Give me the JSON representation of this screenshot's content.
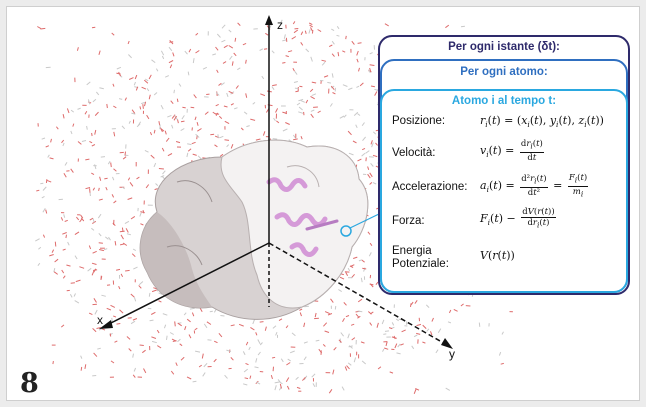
{
  "figure": {
    "number": "8"
  },
  "axes": {
    "x": "x",
    "y": "y",
    "z": "z"
  },
  "panel": {
    "outer_title": "Per ogni istante (δt):",
    "middle_title": "Per ogni atomo:",
    "inner_title": "Atomo i al tempo t:",
    "rows": [
      {
        "label": "Posizione:"
      },
      {
        "label": "Velocità:"
      },
      {
        "label": "Accelerazione:"
      },
      {
        "label": "Forza:"
      },
      {
        "label": "Energia Potenziale:"
      }
    ]
  },
  "colors": {
    "outer_box": "#2e2a6b",
    "middle_box": "#2f6fc0",
    "inner_box": "#2aa8e0",
    "water": "#d9534f",
    "protein": "#e9e6e6",
    "helix": "#d9a6e0"
  }
}
